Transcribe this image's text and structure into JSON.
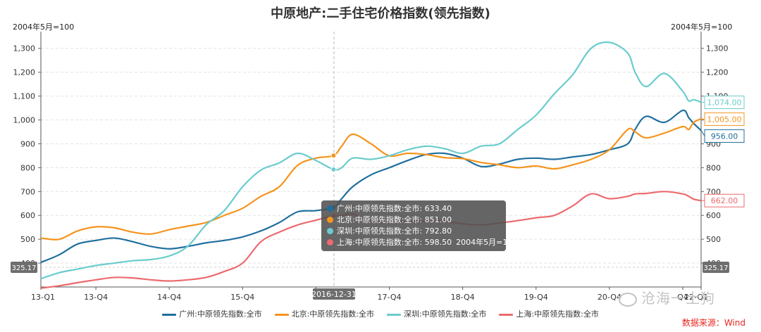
{
  "title": "中原地产:二手住宅价格指数(领先指数)",
  "unit_left": "2004年5月=100",
  "unit_right": "2004年5月=100",
  "source": "数据来源：Wind",
  "watermark": "沧海一土狗",
  "tooltip": {
    "date": "2016-12-31",
    "note": "2004年5月=100",
    "rows": [
      {
        "label": "广州:中原领先指数:全市: 633.40",
        "color": "#1f6f9e"
      },
      {
        "label": "北京:中原领先指数:全市: 851.00",
        "color": "#f5941d"
      },
      {
        "label": "深圳:中原领先指数:全市: 792.80",
        "color": "#6bcccd"
      },
      {
        "label": "上海:中原领先指数:全市: 598.50",
        "color": "#ec6a6e"
      }
    ]
  },
  "pointer_label": "325.17",
  "chart_data": {
    "type": "line",
    "title": "中原地产:二手住宅价格指数(领先指数)",
    "ylabel": "2004年5月=100",
    "ylim": [
      300,
      1370
    ],
    "yticks": [
      400,
      500,
      600,
      700,
      800,
      900,
      1000,
      1100,
      1200,
      1300
    ],
    "ytick_labels": [
      "400",
      "500",
      "600",
      "700",
      "800",
      "900",
      "1,000",
      "1,100",
      "1,200",
      "1,300"
    ],
    "xlim": [
      2013.0,
      2022.0
    ],
    "xticks": [
      2013.0,
      2013.75,
      2014.75,
      2015.75,
      2016.75,
      2017.75,
      2018.75,
      2019.75,
      2020.75,
      2021.75,
      2022.0
    ],
    "xtick_labels": [
      "13-Q1",
      "13-Q4",
      "14-Q4",
      "15-Q4",
      "",
      "17-Q4",
      "18-Q4",
      "19-Q4",
      "20-Q4",
      "Q4",
      "22-Q1"
    ],
    "crosshair_x": 2016.995,
    "crosshair_label": "2016-12-31",
    "grid": true,
    "legend_position": "bottom",
    "series": [
      {
        "name": "广州:中原领先指数:全市",
        "color": "#1f6f9e",
        "end_label": "956.00",
        "x": [
          2013.0,
          2013.25,
          2013.5,
          2013.75,
          2014.0,
          2014.25,
          2014.5,
          2014.75,
          2015.0,
          2015.25,
          2015.5,
          2015.75,
          2016.0,
          2016.25,
          2016.5,
          2016.75,
          2016.99,
          2017.1,
          2017.25,
          2017.5,
          2017.75,
          2018.0,
          2018.25,
          2018.5,
          2018.75,
          2019.0,
          2019.25,
          2019.5,
          2019.75,
          2020.0,
          2020.25,
          2020.5,
          2020.75,
          2021.0,
          2021.1,
          2021.25,
          2021.5,
          2021.75,
          2021.83,
          2021.9,
          2022.0
        ],
        "values": [
          403,
          435,
          480,
          495,
          505,
          490,
          470,
          460,
          470,
          485,
          495,
          510,
          535,
          570,
          615,
          620,
          633.4,
          670,
          720,
          770,
          800,
          830,
          855,
          860,
          840,
          805,
          815,
          835,
          840,
          835,
          845,
          855,
          875,
          900,
          960,
          1015,
          990,
          1040,
          1010,
          985,
          956
        ]
      },
      {
        "name": "北京:中原领先指数:全市",
        "color": "#f5941d",
        "end_label": "1,005.00",
        "x": [
          2013.0,
          2013.25,
          2013.5,
          2013.75,
          2014.0,
          2014.25,
          2014.5,
          2014.75,
          2015.0,
          2015.25,
          2015.5,
          2015.75,
          2016.0,
          2016.25,
          2016.5,
          2016.75,
          2016.99,
          2017.1,
          2017.25,
          2017.5,
          2017.75,
          2018.0,
          2018.25,
          2018.5,
          2018.75,
          2019.0,
          2019.25,
          2019.5,
          2019.75,
          2020.0,
          2020.25,
          2020.5,
          2020.75,
          2021.0,
          2021.1,
          2021.25,
          2021.5,
          2021.75,
          2021.83,
          2021.9,
          2022.0
        ],
        "values": [
          505,
          500,
          535,
          552,
          548,
          530,
          522,
          540,
          555,
          570,
          600,
          630,
          680,
          720,
          810,
          840,
          851,
          890,
          940,
          900,
          850,
          860,
          855,
          842,
          838,
          822,
          812,
          800,
          807,
          795,
          812,
          835,
          875,
          960,
          950,
          925,
          945,
          972,
          960,
          990,
          1005
        ]
      },
      {
        "name": "深圳:中原领先指数:全市",
        "color": "#6bcccd",
        "end_label": "1,074.00",
        "x": [
          2013.0,
          2013.25,
          2013.5,
          2013.75,
          2014.0,
          2014.25,
          2014.5,
          2014.75,
          2015.0,
          2015.25,
          2015.5,
          2015.75,
          2016.0,
          2016.25,
          2016.5,
          2016.75,
          2016.99,
          2017.1,
          2017.25,
          2017.5,
          2017.75,
          2018.0,
          2018.25,
          2018.5,
          2018.75,
          2019.0,
          2019.25,
          2019.5,
          2019.75,
          2020.0,
          2020.25,
          2020.5,
          2020.75,
          2021.0,
          2021.1,
          2021.25,
          2021.5,
          2021.75,
          2021.83,
          2021.9,
          2022.0
        ],
        "values": [
          335,
          360,
          375,
          390,
          400,
          410,
          415,
          430,
          470,
          560,
          620,
          720,
          790,
          820,
          860,
          830,
          792.8,
          800,
          840,
          835,
          850,
          875,
          890,
          880,
          860,
          890,
          900,
          960,
          1020,
          1110,
          1190,
          1300,
          1325,
          1280,
          1200,
          1140,
          1195,
          1120,
          1080,
          1085,
          1074
        ]
      },
      {
        "name": "上海:中原领先指数:全市",
        "color": "#ec6a6e",
        "end_label": "662.00",
        "x": [
          2013.0,
          2013.25,
          2013.5,
          2013.75,
          2014.0,
          2014.25,
          2014.5,
          2014.75,
          2015.0,
          2015.25,
          2015.5,
          2015.75,
          2016.0,
          2016.25,
          2016.5,
          2016.75,
          2016.99,
          2017.1,
          2017.25,
          2017.5,
          2017.75,
          2018.0,
          2018.25,
          2018.5,
          2018.75,
          2019.0,
          2019.25,
          2019.5,
          2019.75,
          2020.0,
          2020.25,
          2020.5,
          2020.75,
          2021.0,
          2021.1,
          2021.25,
          2021.5,
          2021.75,
          2021.83,
          2021.9,
          2022.0
        ],
        "values": [
          295,
          305,
          318,
          330,
          340,
          338,
          330,
          325,
          330,
          340,
          365,
          400,
          490,
          530,
          560,
          580,
          598.5,
          600,
          606,
          575,
          570,
          575,
          575,
          575,
          565,
          560,
          568,
          578,
          590,
          600,
          640,
          690,
          670,
          680,
          690,
          692,
          700,
          690,
          680,
          668,
          662
        ]
      }
    ]
  }
}
